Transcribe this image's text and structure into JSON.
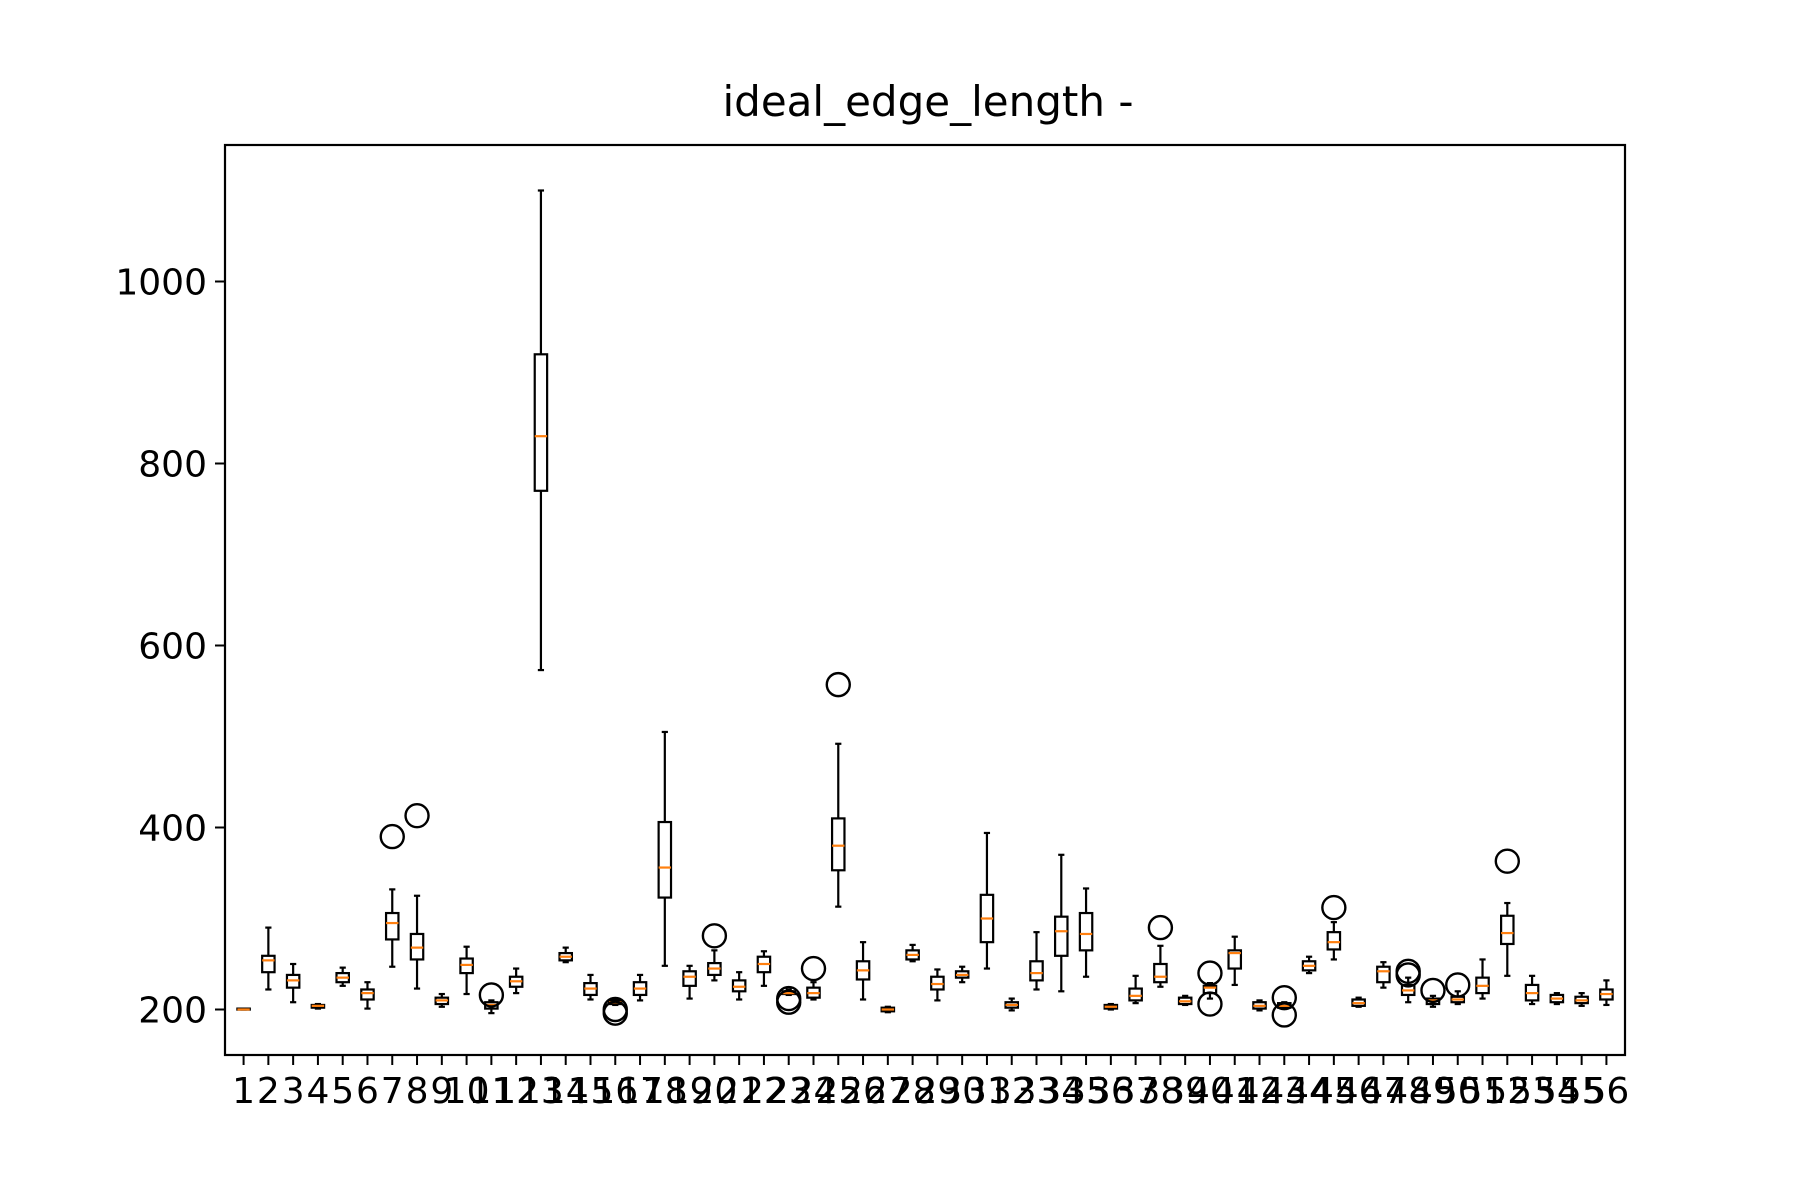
{
  "chart_data": {
    "type": "box",
    "title": "ideal_edge_length -",
    "xlabel": "",
    "ylabel": "",
    "ylim": [
      150,
      1150
    ],
    "yticks": [
      200,
      400,
      600,
      800,
      1000
    ],
    "grid": false,
    "colors": {
      "box": "#000000",
      "median": "#ff7f0e",
      "flier": "#000000"
    },
    "categories": [
      "1",
      "2",
      "3",
      "4",
      "5",
      "6",
      "7",
      "8",
      "9",
      "10",
      "11",
      "12",
      "13",
      "14",
      "15",
      "16",
      "17",
      "18",
      "19",
      "20",
      "21",
      "22",
      "23",
      "24",
      "25",
      "26",
      "27",
      "28",
      "29",
      "30",
      "31",
      "32",
      "33",
      "34",
      "35",
      "36",
      "37",
      "38",
      "39",
      "40",
      "41",
      "42",
      "43",
      "44",
      "45",
      "46",
      "47",
      "48",
      "49",
      "50",
      "51",
      "52",
      "53",
      "54",
      "55",
      "56"
    ],
    "boxes": [
      {
        "label": "1",
        "whislo": 200,
        "q1": 200,
        "med": 200,
        "q3": 201,
        "whishi": 201,
        "fliers": []
      },
      {
        "label": "2",
        "whislo": 222,
        "q1": 241,
        "med": 254,
        "q3": 259,
        "whishi": 290,
        "fliers": []
      },
      {
        "label": "3",
        "whislo": 208,
        "q1": 224,
        "med": 232,
        "q3": 238,
        "whishi": 250,
        "fliers": []
      },
      {
        "label": "4",
        "whislo": 201,
        "q1": 202,
        "med": 204,
        "q3": 205,
        "whishi": 206,
        "fliers": []
      },
      {
        "label": "5",
        "whislo": 226,
        "q1": 230,
        "med": 235,
        "q3": 240,
        "whishi": 246,
        "fliers": []
      },
      {
        "label": "6",
        "whislo": 201,
        "q1": 211,
        "med": 218,
        "q3": 222,
        "whishi": 230,
        "fliers": []
      },
      {
        "label": "7",
        "whislo": 247,
        "q1": 277,
        "med": 295,
        "q3": 306,
        "whishi": 332,
        "fliers": [
          390
        ]
      },
      {
        "label": "8",
        "whislo": 223,
        "q1": 255,
        "med": 268,
        "q3": 283,
        "whishi": 325,
        "fliers": [
          413
        ]
      },
      {
        "label": "9",
        "whislo": 203,
        "q1": 206,
        "med": 210,
        "q3": 213,
        "whishi": 217,
        "fliers": []
      },
      {
        "label": "10",
        "whislo": 217,
        "q1": 240,
        "med": 249,
        "q3": 256,
        "whishi": 269,
        "fliers": []
      },
      {
        "label": "11",
        "whislo": 196,
        "q1": 201,
        "med": 205,
        "q3": 208,
        "whishi": 210,
        "fliers": [
          216
        ]
      },
      {
        "label": "12",
        "whislo": 218,
        "q1": 225,
        "med": 231,
        "q3": 236,
        "whishi": 245,
        "fliers": []
      },
      {
        "label": "13",
        "whislo": 573,
        "q1": 770,
        "med": 830,
        "q3": 920,
        "whishi": 1100,
        "fliers": []
      },
      {
        "label": "14",
        "whislo": 252,
        "q1": 254,
        "med": 258,
        "q3": 262,
        "whishi": 268,
        "fliers": []
      },
      {
        "label": "15",
        "whislo": 211,
        "q1": 216,
        "med": 223,
        "q3": 229,
        "whishi": 238,
        "fliers": []
      },
      {
        "label": "16",
        "whislo": 205,
        "q1": 206,
        "med": 208,
        "q3": 210,
        "whishi": 212,
        "fliers": [
          200,
          196
        ]
      },
      {
        "label": "17",
        "whislo": 210,
        "q1": 216,
        "med": 223,
        "q3": 230,
        "whishi": 238,
        "fliers": []
      },
      {
        "label": "18",
        "whislo": 248,
        "q1": 323,
        "med": 356,
        "q3": 406,
        "whishi": 505,
        "fliers": []
      },
      {
        "label": "19",
        "whislo": 212,
        "q1": 226,
        "med": 236,
        "q3": 242,
        "whishi": 248,
        "fliers": []
      },
      {
        "label": "20",
        "whislo": 232,
        "q1": 238,
        "med": 245,
        "q3": 251,
        "whishi": 265,
        "fliers": [
          281
        ]
      },
      {
        "label": "21",
        "whislo": 211,
        "q1": 220,
        "med": 225,
        "q3": 232,
        "whishi": 241,
        "fliers": []
      },
      {
        "label": "22",
        "whislo": 226,
        "q1": 241,
        "med": 250,
        "q3": 258,
        "whishi": 264,
        "fliers": []
      },
      {
        "label": "23",
        "whislo": 216,
        "q1": 217,
        "med": 218,
        "q3": 220,
        "whishi": 222,
        "fliers": [
          212,
          208
        ]
      },
      {
        "label": "24",
        "whislo": 211,
        "q1": 213,
        "med": 218,
        "q3": 224,
        "whishi": 230,
        "fliers": [
          245
        ]
      },
      {
        "label": "25",
        "whislo": 313,
        "q1": 353,
        "med": 380,
        "q3": 410,
        "whishi": 492,
        "fliers": [
          557
        ]
      },
      {
        "label": "26",
        "whislo": 211,
        "q1": 233,
        "med": 243,
        "q3": 253,
        "whishi": 274,
        "fliers": []
      },
      {
        "label": "27",
        "whislo": 197,
        "q1": 198,
        "med": 200,
        "q3": 202,
        "whishi": 203,
        "fliers": []
      },
      {
        "label": "28",
        "whislo": 253,
        "q1": 255,
        "med": 260,
        "q3": 265,
        "whishi": 271,
        "fliers": []
      },
      {
        "label": "29",
        "whislo": 210,
        "q1": 222,
        "med": 228,
        "q3": 236,
        "whishi": 244,
        "fliers": []
      },
      {
        "label": "30",
        "whislo": 230,
        "q1": 235,
        "med": 238,
        "q3": 242,
        "whishi": 247,
        "fliers": []
      },
      {
        "label": "31",
        "whislo": 245,
        "q1": 274,
        "med": 300,
        "q3": 326,
        "whishi": 394,
        "fliers": []
      },
      {
        "label": "32",
        "whislo": 199,
        "q1": 202,
        "med": 205,
        "q3": 208,
        "whishi": 212,
        "fliers": []
      },
      {
        "label": "33",
        "whislo": 222,
        "q1": 232,
        "med": 240,
        "q3": 253,
        "whishi": 285,
        "fliers": []
      },
      {
        "label": "34",
        "whislo": 220,
        "q1": 259,
        "med": 286,
        "q3": 302,
        "whishi": 370,
        "fliers": []
      },
      {
        "label": "35",
        "whislo": 236,
        "q1": 265,
        "med": 283,
        "q3": 306,
        "whishi": 333,
        "fliers": []
      },
      {
        "label": "36",
        "whislo": 200,
        "q1": 201,
        "med": 203,
        "q3": 205,
        "whishi": 206,
        "fliers": []
      },
      {
        "label": "37",
        "whislo": 207,
        "q1": 210,
        "med": 215,
        "q3": 223,
        "whishi": 237,
        "fliers": []
      },
      {
        "label": "38",
        "whislo": 225,
        "q1": 230,
        "med": 236,
        "q3": 250,
        "whishi": 270,
        "fliers": [
          290
        ]
      },
      {
        "label": "39",
        "whislo": 205,
        "q1": 206,
        "med": 209,
        "q3": 213,
        "whishi": 215,
        "fliers": []
      },
      {
        "label": "40",
        "whislo": 212,
        "q1": 218,
        "med": 224,
        "q3": 226,
        "whishi": 229,
        "fliers": [
          240,
          206
        ]
      },
      {
        "label": "41",
        "whislo": 227,
        "q1": 245,
        "med": 262,
        "q3": 265,
        "whishi": 280,
        "fliers": []
      },
      {
        "label": "42",
        "whislo": 199,
        "q1": 201,
        "med": 204,
        "q3": 208,
        "whishi": 210,
        "fliers": []
      },
      {
        "label": "43",
        "whislo": 201,
        "q1": 202,
        "med": 204,
        "q3": 207,
        "whishi": 208,
        "fliers": [
          213,
          194
        ]
      },
      {
        "label": "44",
        "whislo": 240,
        "q1": 243,
        "med": 248,
        "q3": 253,
        "whishi": 258,
        "fliers": []
      },
      {
        "label": "45",
        "whislo": 255,
        "q1": 266,
        "med": 274,
        "q3": 285,
        "whishi": 296,
        "fliers": [
          312
        ]
      },
      {
        "label": "46",
        "whislo": 203,
        "q1": 204,
        "med": 207,
        "q3": 211,
        "whishi": 213,
        "fliers": []
      },
      {
        "label": "47",
        "whislo": 224,
        "q1": 230,
        "med": 242,
        "q3": 247,
        "whishi": 252,
        "fliers": []
      },
      {
        "label": "48",
        "whislo": 208,
        "q1": 216,
        "med": 221,
        "q3": 227,
        "whishi": 235,
        "fliers": [
          242,
          238
        ]
      },
      {
        "label": "49",
        "whislo": 203,
        "q1": 206,
        "med": 210,
        "q3": 212,
        "whishi": 215,
        "fliers": [
          221
        ]
      },
      {
        "label": "50",
        "whislo": 206,
        "q1": 208,
        "med": 211,
        "q3": 214,
        "whishi": 220,
        "fliers": [
          227
        ]
      },
      {
        "label": "51",
        "whislo": 212,
        "q1": 218,
        "med": 226,
        "q3": 235,
        "whishi": 255,
        "fliers": []
      },
      {
        "label": "52",
        "whislo": 237,
        "q1": 272,
        "med": 284,
        "q3": 303,
        "whishi": 317,
        "fliers": [
          363
        ]
      },
      {
        "label": "53",
        "whislo": 206,
        "q1": 210,
        "med": 218,
        "q3": 227,
        "whishi": 237,
        "fliers": []
      },
      {
        "label": "54",
        "whislo": 206,
        "q1": 208,
        "med": 212,
        "q3": 216,
        "whishi": 218,
        "fliers": []
      },
      {
        "label": "55",
        "whislo": 204,
        "q1": 207,
        "med": 210,
        "q3": 214,
        "whishi": 218,
        "fliers": []
      },
      {
        "label": "56",
        "whislo": 205,
        "q1": 211,
        "med": 217,
        "q3": 222,
        "whishi": 232,
        "fliers": []
      }
    ]
  }
}
